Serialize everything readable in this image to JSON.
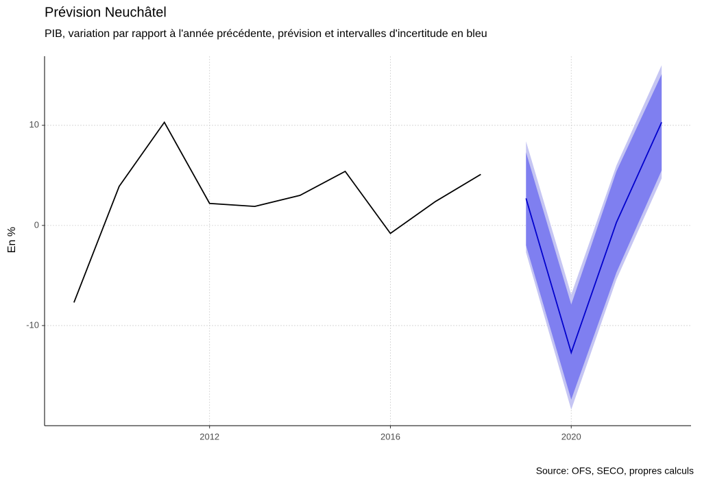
{
  "chart_data": {
    "type": "line",
    "title": "Prévision Neuchâtel",
    "subtitle": "PIB, variation par rapport à l'année précédente, prévision et intervalles d'incertitude en bleu",
    "y_label": "En %",
    "caption": "Source: OFS, SECO, propres calculs",
    "x": [
      2009,
      2010,
      2011,
      2012,
      2013,
      2014,
      2015,
      2016,
      2017,
      2018,
      2019,
      2020,
      2021,
      2022
    ],
    "xlim": [
      2008.35,
      2022.65
    ],
    "xticks": [
      2012,
      2016,
      2020
    ],
    "ylim": [
      -20,
      16.9
    ],
    "yticks": [
      -10,
      0,
      10
    ],
    "grid": true,
    "bands": [
      {
        "color": "#c5c5f3",
        "lower": [
          null,
          null,
          null,
          null,
          null,
          null,
          null,
          null,
          null,
          null,
          -2.7,
          -18.4,
          -5.4,
          4.7
        ],
        "upper": [
          null,
          null,
          null,
          null,
          null,
          null,
          null,
          null,
          null,
          null,
          8.4,
          -6.9,
          6.0,
          16.0
        ]
      },
      {
        "color": "#7f7ff0",
        "lower": [
          null,
          null,
          null,
          null,
          null,
          null,
          null,
          null,
          null,
          null,
          -2.0,
          -17.4,
          -4.7,
          5.5
        ],
        "upper": [
          null,
          null,
          null,
          null,
          null,
          null,
          null,
          null,
          null,
          null,
          7.3,
          -7.9,
          5.4,
          15.1
        ]
      }
    ],
    "series": [
      {
        "color": "#000000",
        "values": [
          -7.7,
          3.9,
          10.3,
          2.2,
          1.9,
          3.0,
          5.4,
          -0.8,
          2.4,
          5.1,
          null,
          null,
          null,
          null
        ]
      },
      {
        "color": "#0000cc",
        "values": [
          null,
          null,
          null,
          null,
          null,
          null,
          null,
          null,
          null,
          null,
          2.7,
          -12.7,
          0.3,
          10.3
        ]
      }
    ]
  }
}
